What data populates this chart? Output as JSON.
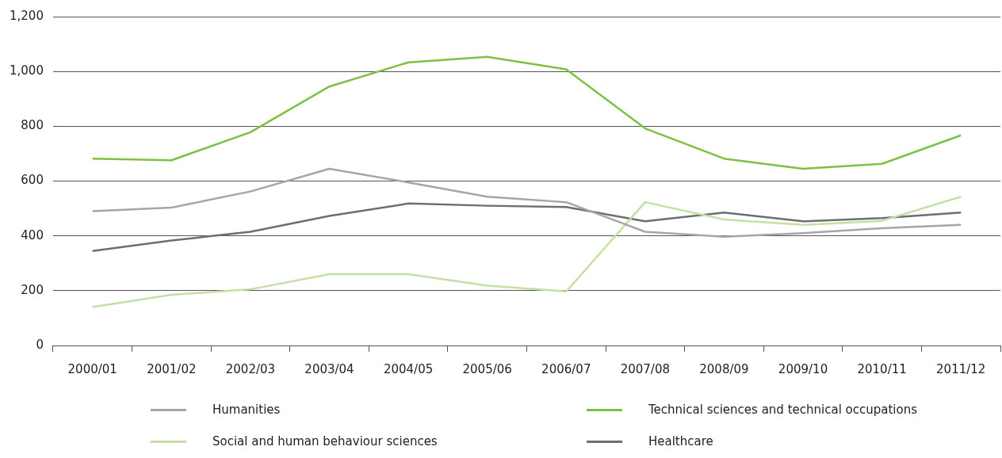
{
  "chart_data": {
    "type": "line",
    "categories": [
      "2000/01",
      "2001/02",
      "2002/03",
      "2003/04",
      "2004/05",
      "2005/06",
      "2006/07",
      "2007/08",
      "2008/09",
      "2009/10",
      "2010/11",
      "2011/12"
    ],
    "series": [
      {
        "name": "Humanities",
        "color": "#a6a6a6",
        "values": [
          490,
          503,
          562,
          645,
          595,
          543,
          523,
          415,
          397,
          410,
          428,
          440
        ]
      },
      {
        "name": "Technical sciences and technical occupations",
        "color": "#7dc142",
        "values": [
          682,
          676,
          778,
          945,
          1033,
          1053,
          1008,
          792,
          682,
          645,
          663,
          767
        ]
      },
      {
        "name": "Social and human behaviour sciences",
        "color": "#c5e0a5",
        "values": [
          140,
          185,
          205,
          260,
          260,
          218,
          197,
          523,
          460,
          440,
          455,
          543
        ]
      },
      {
        "name": "Healthcare",
        "color": "#6d6e71",
        "values": [
          345,
          383,
          415,
          473,
          518,
          510,
          505,
          453,
          485,
          453,
          465,
          485
        ]
      }
    ],
    "ylim": [
      0,
      1200
    ],
    "yticks": [
      0,
      200,
      400,
      600,
      800,
      {
        "value": 1000,
        "label": "1,000"
      },
      {
        "value": 1200,
        "label": "1,200"
      }
    ],
    "grid": "y",
    "legend": "bottom",
    "line_style": "solid"
  }
}
